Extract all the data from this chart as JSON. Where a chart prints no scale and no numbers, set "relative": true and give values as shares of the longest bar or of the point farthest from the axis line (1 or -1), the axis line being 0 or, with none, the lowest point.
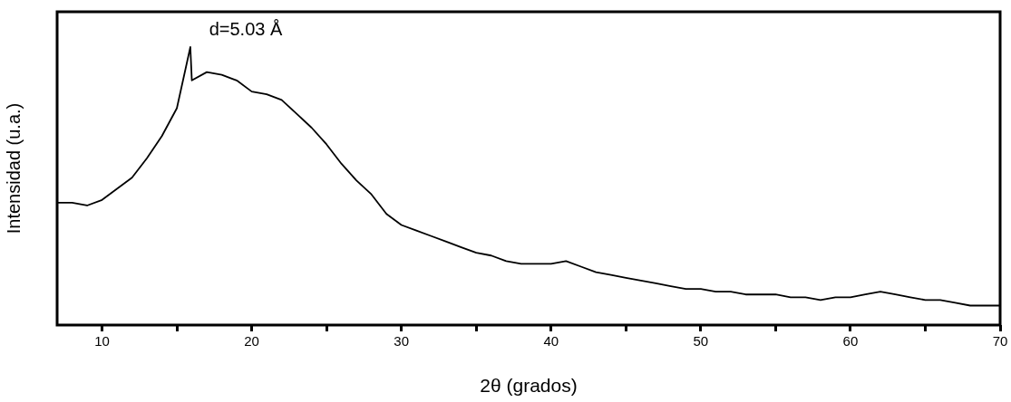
{
  "chart_data": {
    "type": "line",
    "xlabel": "2θ (grados)",
    "ylabel": "Intensidad (u.a.)",
    "relative": true,
    "color": "#000000",
    "marker": "none",
    "legend": false,
    "grid": false,
    "tick_labels": "x",
    "annotations": [
      "d=5.03 Å"
    ],
    "xlim": [
      7,
      70
    ],
    "xticks": [
      10,
      {
        "value": 15,
        "label": null
      },
      20,
      {
        "value": 25,
        "label": null
      },
      30,
      {
        "value": 35,
        "label": null
      },
      40,
      {
        "value": 45,
        "label": null
      },
      50,
      {
        "value": 55,
        "label": null
      },
      60,
      {
        "value": 65,
        "label": null
      },
      70
    ],
    "x": [
      7,
      8,
      9,
      10,
      11,
      12,
      13,
      14,
      15,
      15.9,
      16,
      17,
      18,
      19,
      20,
      21,
      22,
      23,
      24,
      25,
      26,
      27,
      28,
      29,
      30,
      31,
      32,
      33,
      34,
      35,
      36,
      37,
      38,
      39,
      40,
      41,
      42,
      43,
      44,
      45,
      46,
      47,
      48,
      49,
      50,
      51,
      52,
      53,
      54,
      55,
      56,
      57,
      58,
      59,
      60,
      61,
      62,
      63,
      64,
      65,
      66,
      67,
      68,
      69,
      70
    ],
    "values": [
      0.44,
      0.44,
      0.43,
      0.45,
      0.49,
      0.53,
      0.6,
      0.68,
      0.78,
      1,
      0.88,
      0.91,
      0.9,
      0.88,
      0.84,
      0.83,
      0.81,
      0.76,
      0.71,
      0.65,
      0.58,
      0.52,
      0.47,
      0.4,
      0.36,
      0.34,
      0.32,
      0.3,
      0.28,
      0.26,
      0.25,
      0.23,
      0.22,
      0.22,
      0.22,
      0.23,
      0.21,
      0.19,
      0.18,
      0.17,
      0.16,
      0.15,
      0.14,
      0.13,
      0.13,
      0.12,
      0.12,
      0.11,
      0.11,
      0.11,
      0.1,
      0.1,
      0.09,
      0.1,
      0.1,
      0.11,
      0.12,
      0.11,
      0.1,
      0.09,
      0.09,
      0.08,
      0.07,
      0.07,
      0.07
    ]
  }
}
